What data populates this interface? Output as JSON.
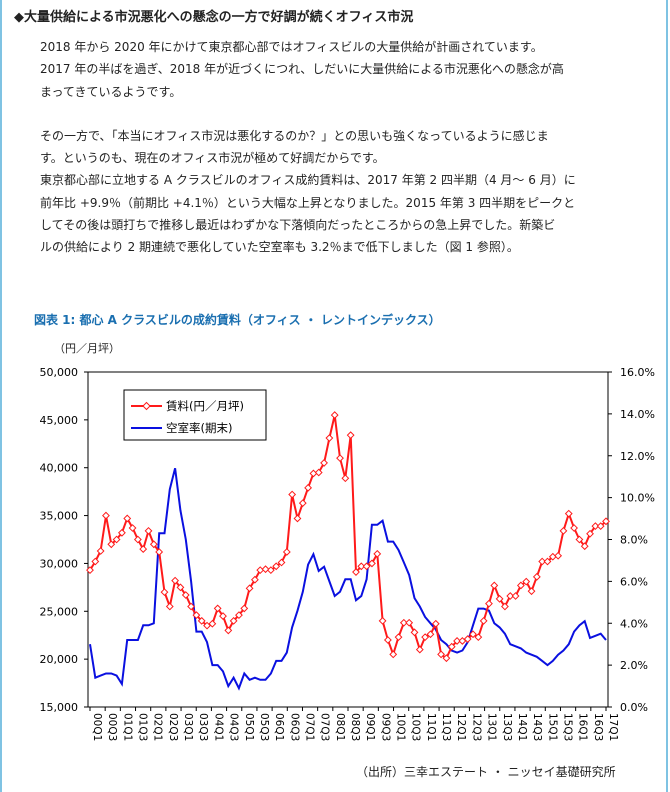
{
  "heading": "◆大量供給による市況悪化への懸念の一方で好調が続くオフィス市況",
  "paragraphs": [
    [
      "2018 年から 2020 年にかけて東京都心部ではオフィスビルの大量供給が計画されています。",
      "2017 年の半ばを過ぎ、2018 年が近づくにつれ、しだいに大量供給による市況悪化への懸念が高",
      "まってきているようです。"
    ],
    [
      "その一方で、「本当にオフィス市況は悪化するのか？」との思いも強くなっているように感じま",
      "す。というのも、現在のオフィス市況が極めて好調だからです。",
      "東京都心部に立地する A クラスビルのオフィス成約賃料は、2017 年第 2 四半期（4 月～ 6 月）に",
      "前年比 +9.9％（前期比 +4.1％）という大幅な上昇となりました。2015 年第 3 四半期をピークと",
      "してその後は頭打ちで推移し最近はわずかな下落傾向だったところからの急上昇でした。新築ビ",
      "ルの供給により 2 期連続で悪化していた空室率も 3.2％まで低下しました（図 1 参照）。"
    ]
  ],
  "figure_title": "図表 1: 都心 A クラスビルの成約賃料（オフィス ・ レントインデックス）",
  "source": "（出所）三幸エステート ・ ニッセイ基礎研究所",
  "chart_data": {
    "type": "line",
    "y_unit_label": "（円／月坪）",
    "y_left_ticks": [
      "50,000",
      "45,000",
      "40,000",
      "35,000",
      "30,000",
      "25,000",
      "20,000",
      "15,000"
    ],
    "y_right_ticks": [
      "16.0%",
      "14.0%",
      "12.0%",
      "10.0%",
      "8.0%",
      "6.0%",
      "4.0%",
      "2.0%",
      "0.0%"
    ],
    "ylim_left": [
      15000,
      50000
    ],
    "ylim_right": [
      0,
      16
    ],
    "x_tick_labels": [
      "00Q1",
      "00Q3",
      "01Q1",
      "01Q3",
      "02Q1",
      "02Q3",
      "03Q1",
      "03Q3",
      "04Q1",
      "04Q3",
      "05Q1",
      "05Q3",
      "06Q1",
      "06Q3",
      "07Q1",
      "07Q3",
      "08Q1",
      "08Q3",
      "09Q1",
      "09Q3",
      "10Q1",
      "10Q3",
      "11Q1",
      "11Q3",
      "12Q1",
      "12Q3",
      "13Q1",
      "13Q3",
      "14Q1",
      "14Q3",
      "15Q1",
      "15Q3",
      "16Q1",
      "16Q3",
      "17Q1"
    ],
    "legend_position": "top-left",
    "series": [
      {
        "name": "賃料(円／月坪)",
        "axis": "left",
        "color": "#ff1a1a",
        "values": [
          29300,
          30200,
          31300,
          35000,
          32000,
          32500,
          33200,
          34700,
          33700,
          32500,
          31500,
          33400,
          32000,
          31200,
          27000,
          25500,
          28200,
          27500,
          26700,
          25500,
          24600,
          24000,
          23500,
          23700,
          25300,
          24500,
          23000,
          24000,
          24600,
          25300,
          27400,
          28300,
          29300,
          29400,
          29300,
          29700,
          30100,
          31200,
          37200,
          34700,
          36300,
          37900,
          39400,
          39500,
          40500,
          43100,
          45500,
          41000,
          38900,
          43400,
          29100,
          29700,
          29700,
          30000,
          31000,
          24000,
          22000,
          20500,
          22300,
          23800,
          23800,
          22800,
          21000,
          22300,
          22600,
          23700,
          20500,
          20100,
          21300,
          21900,
          21900,
          22100,
          22600,
          22300,
          24000,
          25800,
          27700,
          26300,
          25500,
          26600,
          26600,
          27700,
          28100,
          27100,
          28600,
          30200,
          30200,
          30700,
          30800,
          33400,
          35200,
          33700,
          32500,
          31800,
          33100,
          33900,
          33900,
          34400
        ]
      },
      {
        "name": "空室率(期末)",
        "axis": "right",
        "color": "#0a10e0",
        "values": [
          3.0,
          1.4,
          1.5,
          1.6,
          1.6,
          1.5,
          1.1,
          3.2,
          3.2,
          3.2,
          3.9,
          3.9,
          4.0,
          8.3,
          8.3,
          10.4,
          11.4,
          9.4,
          8.0,
          6.0,
          3.6,
          3.6,
          3.1,
          2.0,
          2.0,
          1.7,
          1.0,
          1.4,
          0.9,
          1.6,
          1.3,
          1.4,
          1.3,
          1.3,
          1.6,
          2.2,
          2.2,
          2.6,
          3.8,
          4.6,
          5.5,
          6.8,
          7.3,
          6.5,
          6.7,
          6.0,
          5.3,
          5.5,
          6.1,
          6.1,
          5.1,
          5.3,
          6.1,
          8.7,
          8.7,
          8.9,
          7.9,
          7.9,
          7.5,
          6.9,
          6.3,
          5.2,
          4.8,
          4.3,
          4.0,
          3.7,
          3.2,
          3.0,
          2.7,
          2.6,
          2.7,
          3.1,
          3.9,
          4.7,
          4.7,
          4.6,
          4.0,
          3.8,
          3.5,
          3.0,
          2.9,
          2.8,
          2.6,
          2.5,
          2.4,
          2.2,
          2.0,
          2.2,
          2.5,
          2.7,
          3.0,
          3.6,
          3.9,
          4.1,
          3.3,
          3.4,
          3.5,
          3.2
        ]
      }
    ]
  }
}
